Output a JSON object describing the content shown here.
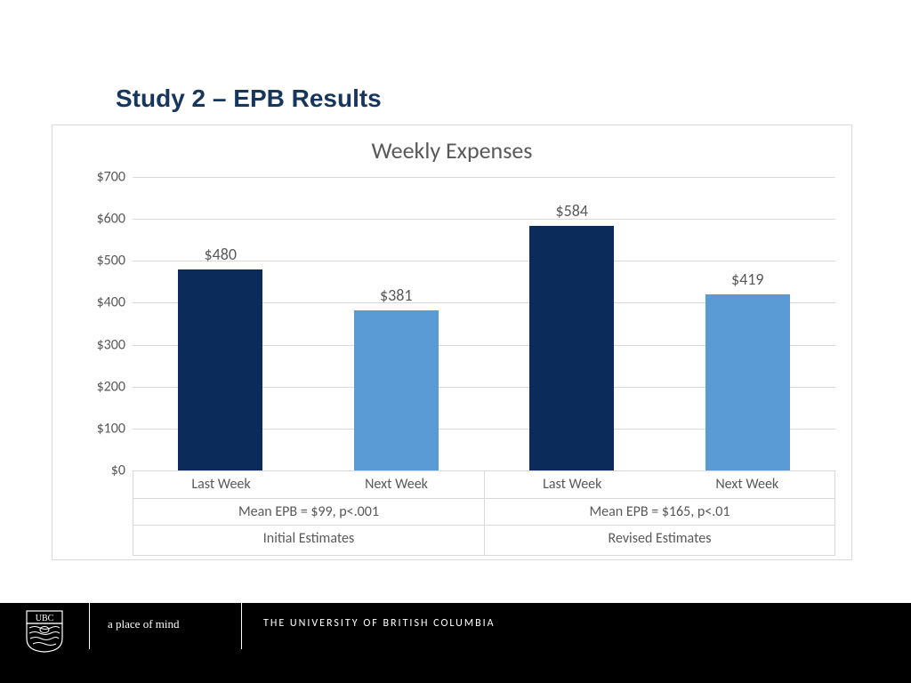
{
  "title": "Study 2 – EPB Results",
  "chart": {
    "type": "bar",
    "title": "Weekly Expenses",
    "title_fontsize": 26,
    "title_color": "#595959",
    "background_color": "#ffffff",
    "border_color": "#d9d9d9",
    "grid_color": "#d9d9d9",
    "tick_color": "#595959",
    "tick_fontsize": 16,
    "data_label_fontsize": 18,
    "data_label_color": "#595959",
    "ylim": [
      0,
      700
    ],
    "ytick_step": 100,
    "yticks": [
      "$0",
      "$100",
      "$200",
      "$300",
      "$400",
      "$500",
      "$600",
      "$700"
    ],
    "bar_width_pct": 12,
    "groups": [
      {
        "label": "Initial Estimates",
        "stat": "Mean EPB = $99, p<.001",
        "bars": [
          {
            "sub_label": "Last Week",
            "value": 480,
            "display": "$480",
            "color": "#0b2b5a"
          },
          {
            "sub_label": "Next Week",
            "value": 381,
            "display": "$381",
            "color": "#5b9bd5"
          }
        ]
      },
      {
        "label": "Revised Estimates",
        "stat": "Mean EPB = $165, p<.01",
        "bars": [
          {
            "sub_label": "Last Week",
            "value": 584,
            "display": "$584",
            "color": "#0b2b5a"
          },
          {
            "sub_label": "Next Week",
            "value": 419,
            "display": "$419",
            "color": "#5b9bd5"
          }
        ]
      }
    ]
  },
  "footer": {
    "tagline": "a place of mind",
    "university": "THE UNIVERSITY OF BRITISH COLUMBIA",
    "logo_label": "UBC"
  },
  "colors": {
    "title": "#17365d",
    "footer_bg": "#000000",
    "footer_text": "#ffffff"
  }
}
